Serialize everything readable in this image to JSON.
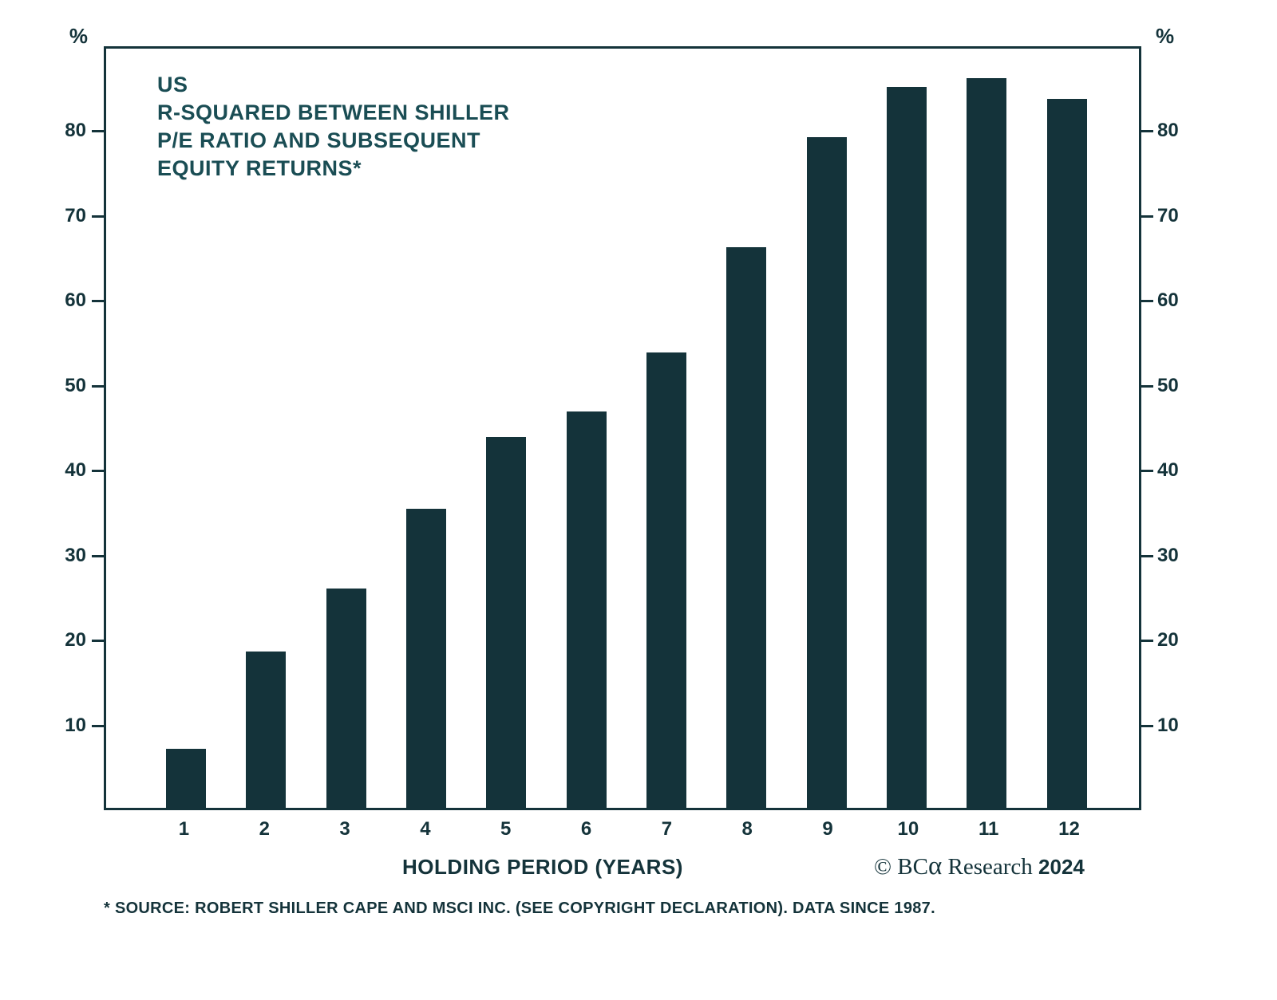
{
  "colors": {
    "bar": "#14333a",
    "text": "#14333a",
    "title_text": "#1a4d54",
    "background": "#ffffff"
  },
  "title_lines": [
    "US",
    "R-SQUARED BETWEEN SHILLER",
    "P/E RATIO AND SUBSEQUENT",
    "EQUITY RETURNS*"
  ],
  "axes": {
    "left_unit": "%",
    "right_unit": "%",
    "y_ticks": [
      10,
      20,
      30,
      40,
      50,
      60,
      70,
      80
    ]
  },
  "x_axis_title": "HOLDING PERIOD (YEARS)",
  "copyright": {
    "prefix": "© BC",
    "alpha": "α",
    "text": " Research ",
    "year": "2024"
  },
  "footnote": "* SOURCE: ROBERT SHILLER CAPE AND MSCI INC. (SEE COPYRIGHT DECLARATION). DATA SINCE 1987.",
  "chart_data": {
    "type": "bar",
    "title": "US R-SQUARED BETWEEN SHILLER P/E RATIO AND SUBSEQUENT EQUITY RETURNS*",
    "categories": [
      "1",
      "2",
      "3",
      "4",
      "5",
      "6",
      "7",
      "8",
      "9",
      "10",
      "11",
      "12"
    ],
    "values": [
      7,
      18.5,
      26,
      35.5,
      44,
      47,
      54,
      66.5,
      79.5,
      85.5,
      86.5,
      84
    ],
    "xlabel": "HOLDING PERIOD (YEARS)",
    "ylabel": "%",
    "ylim": [
      0,
      90
    ],
    "y_ticks": [
      10,
      20,
      30,
      40,
      50,
      60,
      70,
      80
    ],
    "grid": false,
    "legend": "none",
    "bar_color": "#14333a",
    "source": "* SOURCE: ROBERT SHILLER CAPE AND MSCI INC. (SEE COPYRIGHT DECLARATION). DATA SINCE 1987."
  }
}
